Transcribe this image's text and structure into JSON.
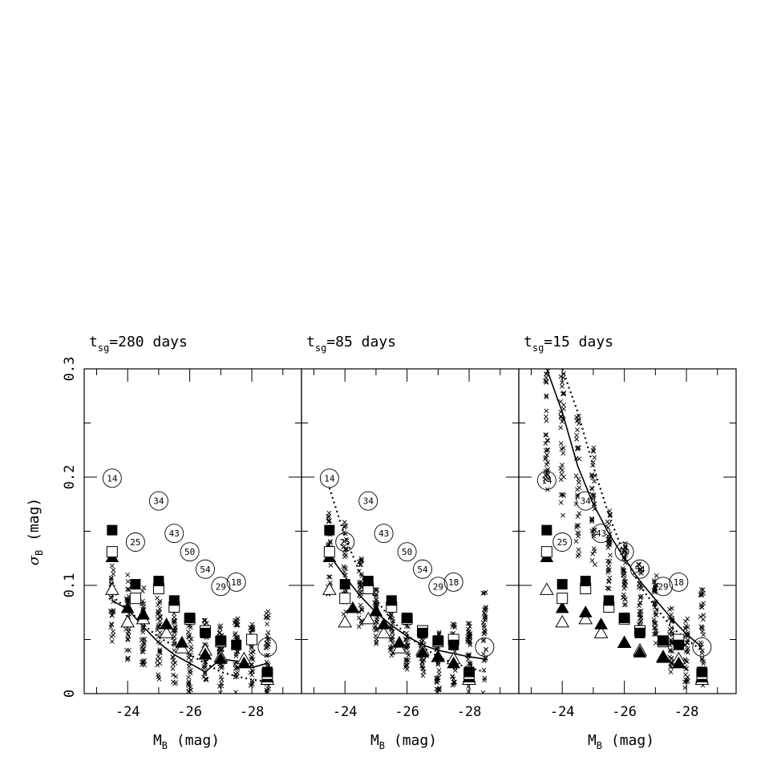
{
  "chart_data": {
    "type": "scatter",
    "ylabel": "σB (mag)",
    "ylim": [
      0,
      0.3
    ],
    "yticks": [
      0,
      0.1,
      0.2,
      0.3
    ],
    "xlim": [
      -22.6,
      -29.6
    ],
    "xticks": [
      -24,
      -26,
      -28
    ],
    "grid": false,
    "panels": [
      {
        "title": "tsg=280 days",
        "title_main": "t",
        "title_sub": "sg",
        "title_rest": "=280 days",
        "xlabel": "MB (mag)",
        "solid_line": [
          [
            -23.5,
            0.086
          ],
          [
            -24.0,
            0.078
          ],
          [
            -24.5,
            0.062
          ],
          [
            -25.0,
            0.047
          ],
          [
            -25.5,
            0.036
          ],
          [
            -26.0,
            0.028
          ],
          [
            -26.5,
            0.02
          ],
          [
            -27.0,
            0.032
          ],
          [
            -27.5,
            0.03
          ],
          [
            -28.0,
            0.024
          ],
          [
            -28.5,
            0.028
          ]
        ],
        "dotted_line": [
          [
            -23.5,
            0.09
          ],
          [
            -24.0,
            0.078
          ],
          [
            -24.5,
            0.064
          ],
          [
            -25.0,
            0.052
          ],
          [
            -25.5,
            0.044
          ],
          [
            -26.0,
            0.036
          ],
          [
            -26.5,
            0.028
          ],
          [
            -27.0,
            0.02
          ],
          [
            -27.5,
            0.016
          ],
          [
            -28.0,
            0.013
          ],
          [
            -28.5,
            0.011
          ]
        ],
        "filled_squares": [
          [
            -23.5,
            0.151
          ],
          [
            -24.25,
            0.101
          ],
          [
            -25.0,
            0.104
          ],
          [
            -25.5,
            0.086
          ],
          [
            -26.0,
            0.07
          ],
          [
            -26.5,
            0.056
          ],
          [
            -27.0,
            0.049
          ],
          [
            -27.5,
            0.045
          ],
          [
            -28.5,
            0.02
          ]
        ],
        "open_squares": [
          [
            -23.5,
            0.131
          ],
          [
            -24.25,
            0.088
          ],
          [
            -25.0,
            0.097
          ],
          [
            -25.5,
            0.08
          ],
          [
            -26.0,
            0.069
          ],
          [
            -26.5,
            0.058
          ],
          [
            -27.0,
            0.048
          ],
          [
            -28.0,
            0.05
          ],
          [
            -28.5,
            0.018
          ]
        ],
        "filled_triangles": [
          [
            -23.5,
            0.126
          ],
          [
            -24.0,
            0.079
          ],
          [
            -24.5,
            0.073
          ],
          [
            -25.25,
            0.064
          ],
          [
            -25.75,
            0.047
          ],
          [
            -26.5,
            0.036
          ],
          [
            -27.0,
            0.032
          ],
          [
            -27.75,
            0.028
          ],
          [
            -28.5,
            0.015
          ]
        ],
        "open_triangles": [
          [
            -23.5,
            0.096
          ],
          [
            -24.0,
            0.066
          ],
          [
            -24.5,
            0.069
          ],
          [
            -25.25,
            0.056
          ],
          [
            -25.75,
            0.042
          ],
          [
            -26.5,
            0.04
          ],
          [
            -27.0,
            0.034
          ],
          [
            -27.75,
            0.032
          ],
          [
            -28.5,
            0.013
          ]
        ],
        "labeled_circles": [
          {
            "label": "14",
            "x": -23.5,
            "y": 0.199
          },
          {
            "label": "25",
            "x": -24.25,
            "y": 0.14
          },
          {
            "label": "34",
            "x": -25.0,
            "y": 0.178
          },
          {
            "label": "43",
            "x": -25.5,
            "y": 0.148
          },
          {
            "label": "50",
            "x": -26.0,
            "y": 0.131
          },
          {
            "label": "54",
            "x": -26.5,
            "y": 0.115
          },
          {
            "label": "29",
            "x": -27.0,
            "y": 0.099
          },
          {
            "label": "18",
            "x": -27.5,
            "y": 0.103
          },
          {
            "label": "",
            "x": -28.5,
            "y": 0.043
          }
        ],
        "scatter_columns": [
          {
            "x": -23.5,
            "min": 0.035,
            "max": 0.12
          },
          {
            "x": -24.0,
            "min": 0.03,
            "max": 0.11
          },
          {
            "x": -24.5,
            "min": 0.015,
            "max": 0.1
          },
          {
            "x": -25.0,
            "min": 0.01,
            "max": 0.09
          },
          {
            "x": -25.5,
            "min": 0.005,
            "max": 0.08
          },
          {
            "x": -26.0,
            "min": 0.0,
            "max": 0.075
          },
          {
            "x": -26.5,
            "min": 0.0,
            "max": 0.07
          },
          {
            "x": -27.0,
            "min": 0.0,
            "max": 0.065
          },
          {
            "x": -27.5,
            "min": 0.0,
            "max": 0.07
          },
          {
            "x": -28.0,
            "min": 0.0,
            "max": 0.065
          },
          {
            "x": -28.5,
            "min": 0.0,
            "max": 0.078
          }
        ]
      },
      {
        "title": "tsg=85 days",
        "title_main": "t",
        "title_sub": "sg",
        "title_rest": "=85 days",
        "xlabel": "MB (mag)",
        "solid_line": [
          [
            -23.5,
            0.128
          ],
          [
            -24.0,
            0.108
          ],
          [
            -24.5,
            0.09
          ],
          [
            -25.0,
            0.075
          ],
          [
            -25.5,
            0.063
          ],
          [
            -26.0,
            0.053
          ],
          [
            -26.5,
            0.045
          ],
          [
            -27.0,
            0.04
          ],
          [
            -27.5,
            0.037
          ],
          [
            -28.0,
            0.034
          ],
          [
            -28.5,
            0.032
          ]
        ],
        "dotted_line": [
          [
            -23.5,
            0.19
          ],
          [
            -24.0,
            0.145
          ],
          [
            -24.5,
            0.11
          ],
          [
            -25.0,
            0.087
          ],
          [
            -25.5,
            0.068
          ],
          [
            -26.0,
            0.054
          ],
          [
            -26.5,
            0.043
          ],
          [
            -27.0,
            0.034
          ],
          [
            -27.5,
            0.028
          ],
          [
            -28.0,
            0.024
          ],
          [
            -28.5,
            0.02
          ]
        ],
        "filled_squares": [
          [
            -23.5,
            0.151
          ],
          [
            -24.0,
            0.101
          ],
          [
            -24.75,
            0.104
          ],
          [
            -25.5,
            0.086
          ],
          [
            -26.0,
            0.07
          ],
          [
            -26.5,
            0.056
          ],
          [
            -27.0,
            0.049
          ],
          [
            -27.5,
            0.045
          ],
          [
            -28.0,
            0.02
          ]
        ],
        "open_squares": [
          [
            -23.5,
            0.131
          ],
          [
            -24.0,
            0.088
          ],
          [
            -24.75,
            0.097
          ],
          [
            -25.5,
            0.08
          ],
          [
            -26.0,
            0.069
          ],
          [
            -26.5,
            0.058
          ],
          [
            -27.0,
            0.048
          ],
          [
            -27.5,
            0.05
          ],
          [
            -28.0,
            0.018
          ]
        ],
        "filled_triangles": [
          [
            -23.5,
            0.126
          ],
          [
            -24.25,
            0.079
          ],
          [
            -25.0,
            0.076
          ],
          [
            -25.25,
            0.064
          ],
          [
            -25.75,
            0.047
          ],
          [
            -26.5,
            0.038
          ],
          [
            -27.0,
            0.034
          ],
          [
            -27.5,
            0.028
          ],
          [
            -28.0,
            0.015
          ]
        ],
        "open_triangles": [
          [
            -23.5,
            0.096
          ],
          [
            -24.0,
            0.066
          ],
          [
            -24.75,
            0.069
          ],
          [
            -25.25,
            0.056
          ],
          [
            -25.75,
            0.042
          ],
          [
            -26.5,
            0.04
          ],
          [
            -27.0,
            0.034
          ],
          [
            -27.5,
            0.032
          ],
          [
            -28.0,
            0.013
          ]
        ],
        "labeled_circles": [
          {
            "label": "14",
            "x": -23.5,
            "y": 0.199
          },
          {
            "label": "25",
            "x": -24.0,
            "y": 0.14
          },
          {
            "label": "34",
            "x": -24.75,
            "y": 0.178
          },
          {
            "label": "43",
            "x": -25.25,
            "y": 0.148
          },
          {
            "label": "50",
            "x": -26.0,
            "y": 0.131
          },
          {
            "label": "54",
            "x": -26.5,
            "y": 0.115
          },
          {
            "label": "29",
            "x": -27.0,
            "y": 0.099
          },
          {
            "label": "18",
            "x": -27.5,
            "y": 0.103
          },
          {
            "label": "",
            "x": -28.5,
            "y": 0.043
          }
        ],
        "scatter_columns": [
          {
            "x": -23.5,
            "min": 0.09,
            "max": 0.17
          },
          {
            "x": -24.0,
            "min": 0.07,
            "max": 0.16
          },
          {
            "x": -24.5,
            "min": 0.06,
            "max": 0.125
          },
          {
            "x": -25.0,
            "min": 0.045,
            "max": 0.1
          },
          {
            "x": -25.5,
            "min": 0.035,
            "max": 0.085
          },
          {
            "x": -26.0,
            "min": 0.02,
            "max": 0.07
          },
          {
            "x": -26.5,
            "min": 0.015,
            "max": 0.06
          },
          {
            "x": -27.0,
            "min": 0.0,
            "max": 0.06
          },
          {
            "x": -27.5,
            "min": 0.0,
            "max": 0.065
          },
          {
            "x": -28.0,
            "min": 0.0,
            "max": 0.065
          },
          {
            "x": -28.5,
            "min": 0.0,
            "max": 0.094
          }
        ]
      },
      {
        "title": "tsg=15 days",
        "title_main": "t",
        "title_sub": "sg",
        "title_rest": "=15 days",
        "xlabel": "MB (mag)",
        "solid_line": [
          [
            -23.5,
            0.3
          ],
          [
            -24.0,
            0.26
          ],
          [
            -24.5,
            0.21
          ],
          [
            -25.0,
            0.175
          ],
          [
            -25.5,
            0.148
          ],
          [
            -26.0,
            0.125
          ],
          [
            -26.5,
            0.104
          ],
          [
            -27.0,
            0.087
          ],
          [
            -27.5,
            0.07
          ],
          [
            -28.0,
            0.055
          ],
          [
            -28.5,
            0.043
          ]
        ],
        "dotted_line": [
          [
            -24.0,
            0.3
          ],
          [
            -24.5,
            0.26
          ],
          [
            -25.0,
            0.21
          ],
          [
            -25.5,
            0.165
          ],
          [
            -26.0,
            0.128
          ],
          [
            -26.5,
            0.1
          ],
          [
            -27.0,
            0.08
          ],
          [
            -27.5,
            0.062
          ],
          [
            -28.0,
            0.05
          ],
          [
            -28.5,
            0.04
          ]
        ],
        "filled_squares": [
          [
            -23.5,
            0.151
          ],
          [
            -24.0,
            0.101
          ],
          [
            -24.75,
            0.104
          ],
          [
            -25.5,
            0.086
          ],
          [
            -26.0,
            0.07
          ],
          [
            -26.5,
            0.056
          ],
          [
            -27.25,
            0.049
          ],
          [
            -27.75,
            0.045
          ],
          [
            -28.5,
            0.02
          ]
        ],
        "open_squares": [
          [
            -23.5,
            0.131
          ],
          [
            -24.0,
            0.088
          ],
          [
            -24.75,
            0.097
          ],
          [
            -25.5,
            0.08
          ],
          [
            -26.0,
            0.069
          ],
          [
            -26.5,
            0.058
          ],
          [
            -27.25,
            0.048
          ],
          [
            -27.75,
            0.05
          ],
          [
            -28.5,
            0.018
          ]
        ],
        "filled_triangles": [
          [
            -23.5,
            0.126
          ],
          [
            -24.0,
            0.079
          ],
          [
            -24.75,
            0.075
          ],
          [
            -25.25,
            0.064
          ],
          [
            -26.0,
            0.047
          ],
          [
            -26.5,
            0.038
          ],
          [
            -27.25,
            0.033
          ],
          [
            -27.75,
            0.028
          ],
          [
            -28.5,
            0.015
          ]
        ],
        "open_triangles": [
          [
            -23.5,
            0.096
          ],
          [
            -24.0,
            0.066
          ],
          [
            -24.75,
            0.069
          ],
          [
            -25.25,
            0.056
          ],
          [
            -26.0,
            0.047
          ],
          [
            -26.5,
            0.04
          ],
          [
            -27.25,
            0.034
          ],
          [
            -27.75,
            0.032
          ],
          [
            -28.5,
            0.013
          ]
        ],
        "labeled_circles": [
          {
            "label": "14",
            "x": -23.5,
            "y": 0.197
          },
          {
            "label": "25",
            "x": -24.0,
            "y": 0.14
          },
          {
            "label": "34",
            "x": -24.75,
            "y": 0.178
          },
          {
            "label": "43",
            "x": -25.25,
            "y": 0.148
          },
          {
            "label": "50",
            "x": -26.0,
            "y": 0.131
          },
          {
            "label": "54",
            "x": -26.5,
            "y": 0.115
          },
          {
            "label": "29",
            "x": -27.25,
            "y": 0.099
          },
          {
            "label": "18",
            "x": -27.75,
            "y": 0.103
          },
          {
            "label": "",
            "x": -28.5,
            "y": 0.043
          }
        ],
        "scatter_columns": [
          {
            "x": -23.5,
            "min": 0.18,
            "max": 0.3
          },
          {
            "x": -24.0,
            "min": 0.15,
            "max": 0.3
          },
          {
            "x": -24.5,
            "min": 0.12,
            "max": 0.26
          },
          {
            "x": -25.0,
            "min": 0.11,
            "max": 0.23
          },
          {
            "x": -25.5,
            "min": 0.095,
            "max": 0.17
          },
          {
            "x": -26.0,
            "min": 0.08,
            "max": 0.14
          },
          {
            "x": -26.5,
            "min": 0.06,
            "max": 0.12
          },
          {
            "x": -27.0,
            "min": 0.045,
            "max": 0.11
          },
          {
            "x": -27.5,
            "min": 0.02,
            "max": 0.08
          },
          {
            "x": -28.0,
            "min": 0.005,
            "max": 0.07
          },
          {
            "x": -28.5,
            "min": 0.005,
            "max": 0.1
          }
        ]
      }
    ]
  },
  "axis_text": {
    "ylabel_sigma": "σ",
    "ylabel_sub": "B",
    "ylabel_rest": " (mag)",
    "xlabel_main": "M",
    "xlabel_sub": "B",
    "xlabel_rest": " (mag)",
    "ytick_labels": [
      "0",
      "0.1",
      "0.2",
      "0.3"
    ],
    "xtick_labels": [
      "-24",
      "-26",
      "-28"
    ]
  }
}
